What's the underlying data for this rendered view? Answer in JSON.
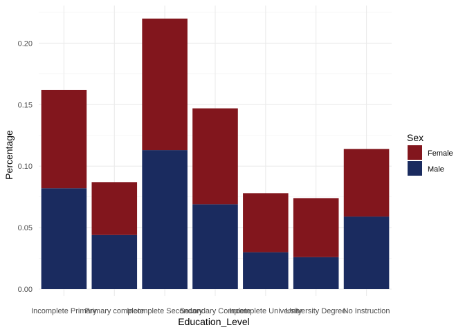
{
  "chart_data": {
    "type": "bar",
    "stacked": true,
    "categories": [
      "Incomplete Primary",
      "Primary complete",
      "Incomplete Secondary",
      "Secondary Complete",
      "Incomplete University",
      "University Degree",
      "No Instruction"
    ],
    "series": [
      {
        "name": "Male",
        "color": "#1a2b5f",
        "values": [
          0.082,
          0.044,
          0.113,
          0.069,
          0.03,
          0.026,
          0.059
        ]
      },
      {
        "name": "Female",
        "color": "#82161d",
        "values": [
          0.08,
          0.043,
          0.107,
          0.078,
          0.048,
          0.048,
          0.055
        ]
      }
    ],
    "title": "",
    "xlabel": "Education_Level",
    "ylabel": "Percentage",
    "ylim": [
      0,
      0.2313
    ],
    "yticks": [
      0.0,
      0.05,
      0.1,
      0.15,
      0.2
    ],
    "ytick_labels": [
      "0.00",
      "0.05",
      "0.10",
      "0.15",
      "0.20"
    ],
    "grid": true,
    "legend": {
      "title": "Sex",
      "placement": "right",
      "entries": [
        "Female",
        "Male"
      ]
    },
    "colors": {
      "grid_major": "#ebebeb",
      "grid_minor": "#f2f2f2",
      "tick_text": "#4d4d4d"
    }
  }
}
